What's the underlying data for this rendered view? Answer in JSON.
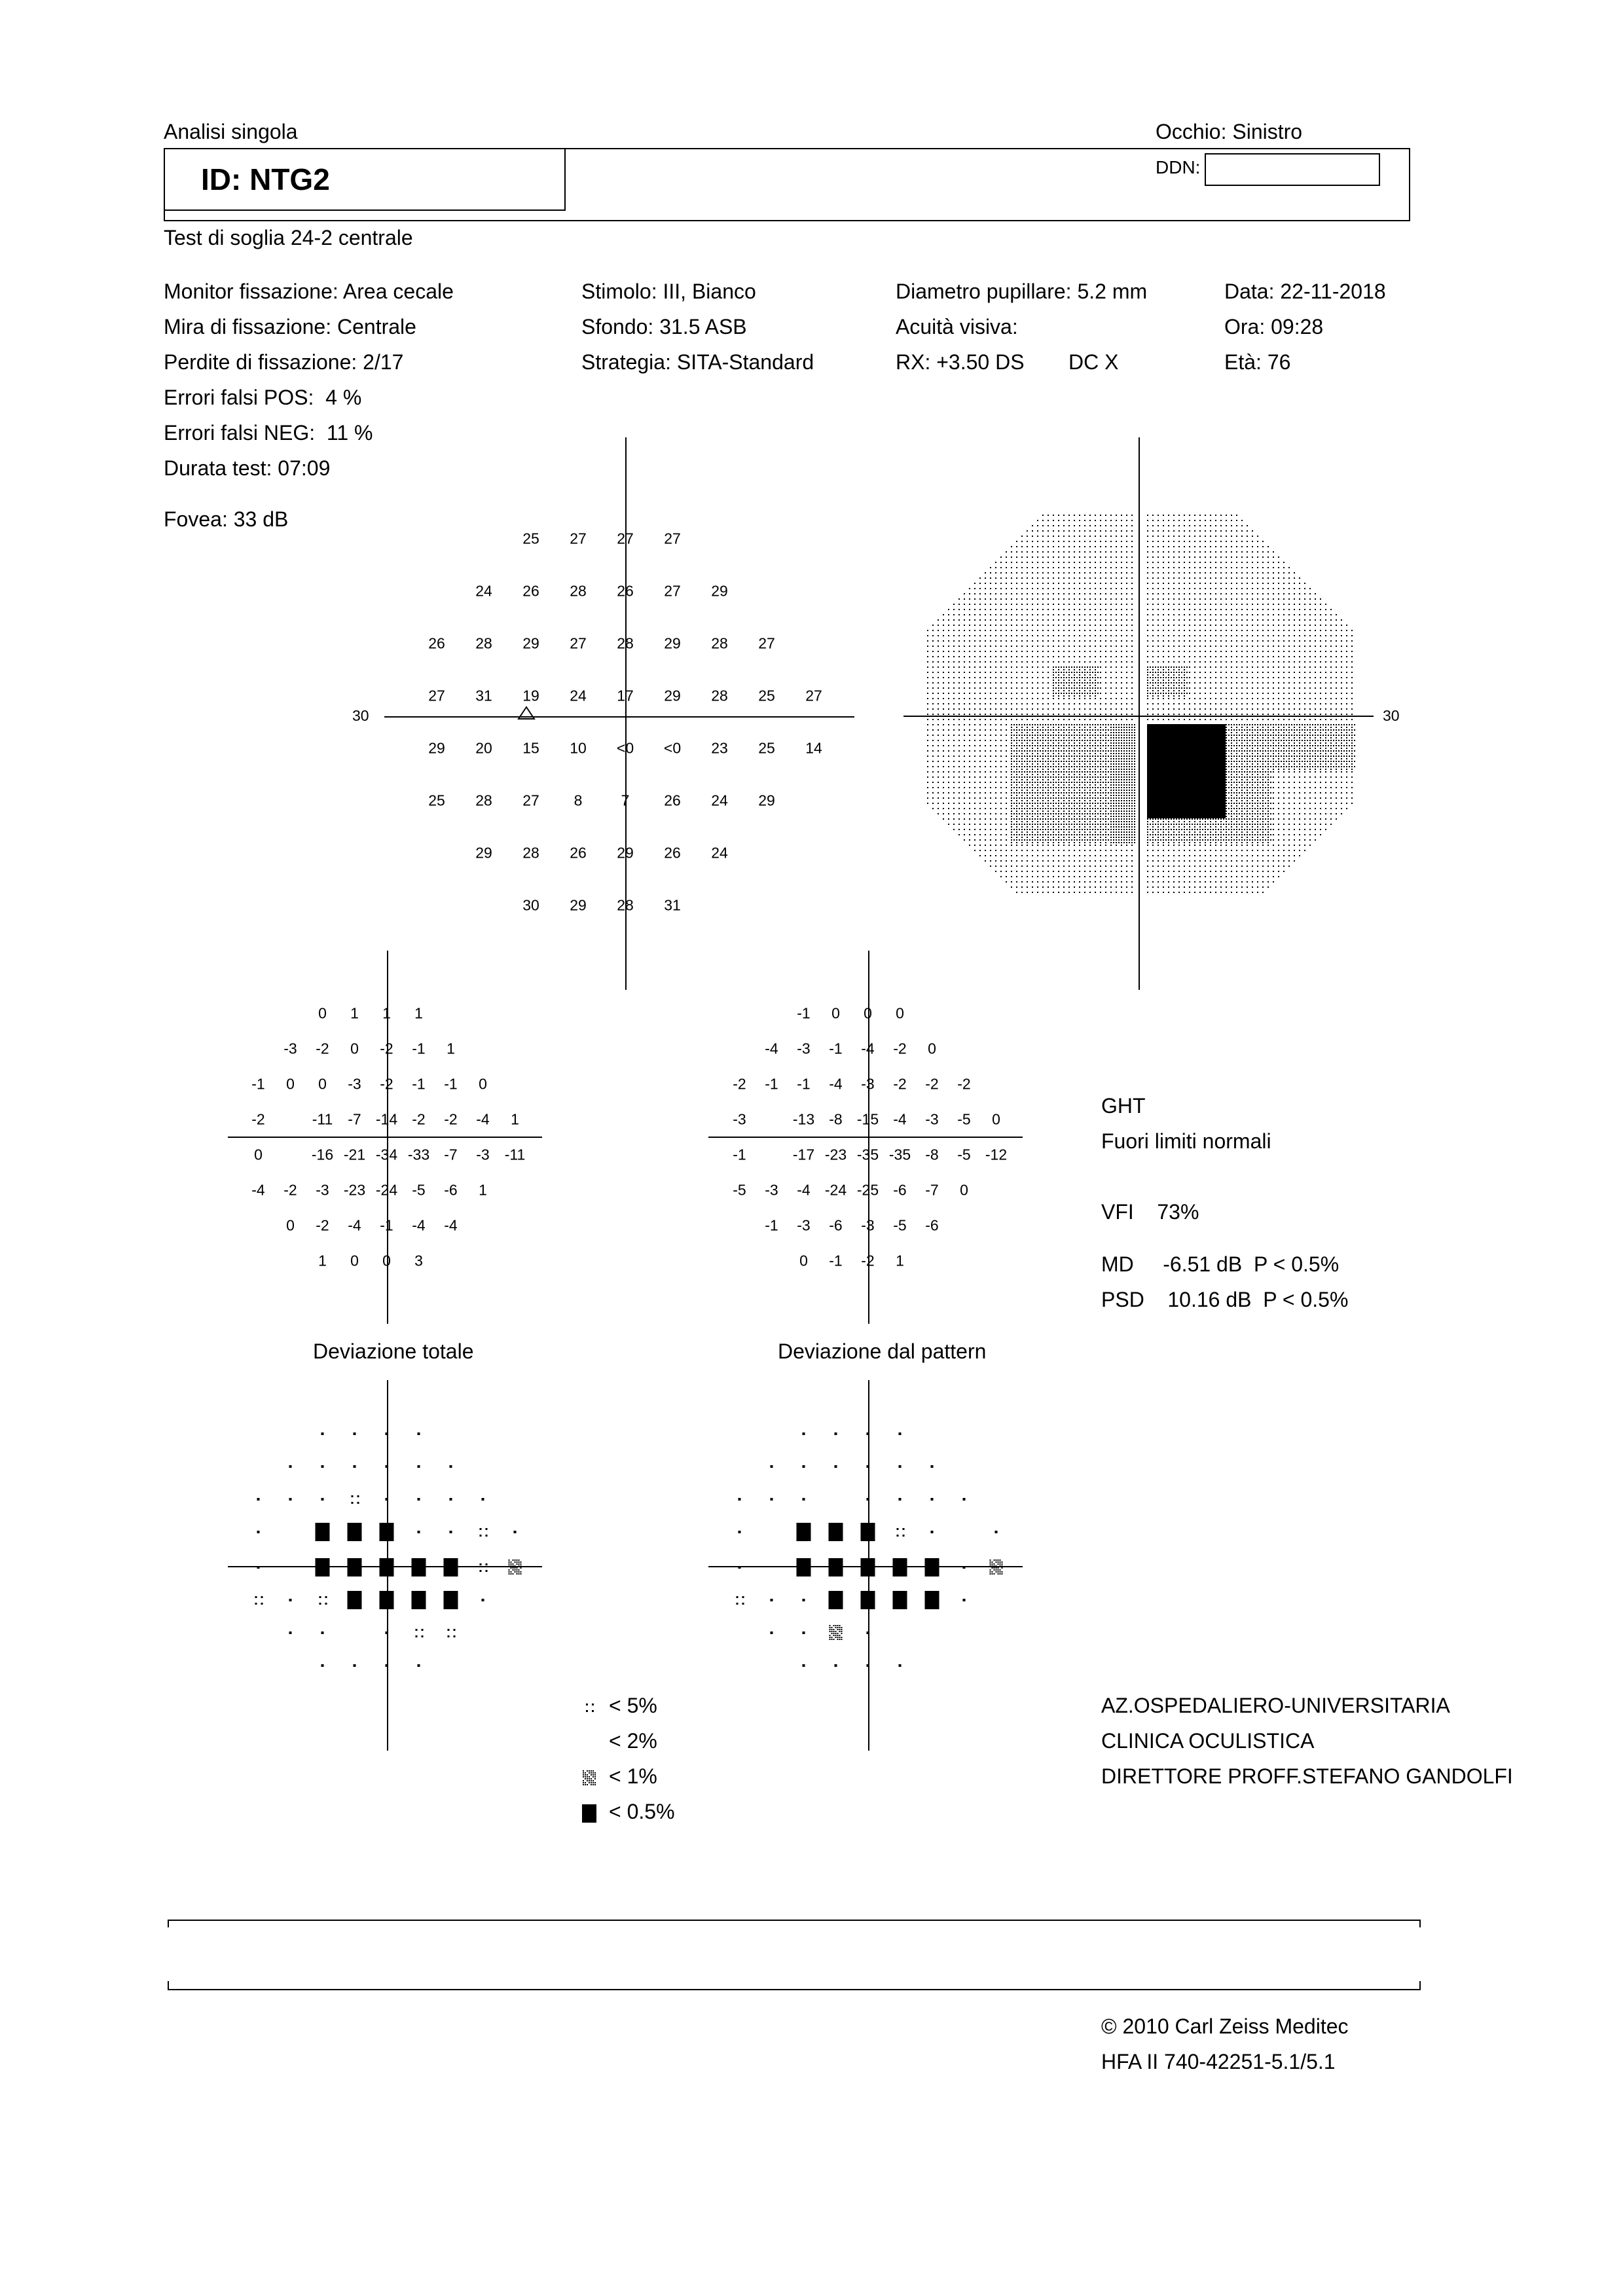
{
  "header": {
    "report_type": "Analisi singola",
    "eye": "Occhio: Sinistro",
    "patient_id": "ID: NTG2",
    "dob_label": "DDN:",
    "test_name": "Test di soglia 24-2 centrale"
  },
  "params": {
    "col1": [
      "Monitor fissazione: Area cecale",
      "Mira di fissazione: Centrale",
      "Perdite di fissazione: 2/17",
      "Errori falsi POS:  4 %",
      "Errori falsi NEG:  11 %",
      "Durata test: 07:09"
    ],
    "fovea": "Fovea: 33 dB",
    "col2": [
      "Stimolo: III, Bianco",
      "Sfondo: 31.5 ASB",
      "Strategia: SITA-Standard"
    ],
    "col3": [
      "Diametro pupillare: 5.2 mm",
      "Acuità visiva:",
      "RX: +3.50 DS"
    ],
    "col3_extra": "DC  X",
    "col4": [
      "Data: 22-11-2018",
      "Ora: 09:28",
      "Età: 76"
    ]
  },
  "threshold": {
    "axis_label_left": "30",
    "axis_label_right": "30",
    "rows": [
      [
        "",
        "",
        "",
        "25",
        "27",
        "27",
        "27",
        "",
        "",
        ""
      ],
      [
        "",
        "",
        "24",
        "26",
        "28",
        "26",
        "27",
        "29",
        "",
        ""
      ],
      [
        "",
        "26",
        "28",
        "29",
        "27",
        "28",
        "29",
        "28",
        "27",
        ""
      ],
      [
        "",
        "27",
        "31",
        "19",
        "24",
        "17",
        "29",
        "28",
        "25",
        "27"
      ],
      [
        "",
        "29",
        "20",
        "15",
        "10",
        "<0",
        "<0",
        "23",
        "25",
        "14"
      ],
      [
        "",
        "25",
        "28",
        "27",
        "8",
        "7",
        "26",
        "24",
        "29",
        ""
      ],
      [
        "",
        "",
        "29",
        "28",
        "26",
        "29",
        "26",
        "24",
        "",
        ""
      ],
      [
        "",
        "",
        "",
        "30",
        "29",
        "28",
        "31",
        "",
        "",
        ""
      ]
    ]
  },
  "total_deviation": {
    "label": "Deviazione totale",
    "rows": [
      [
        "",
        "",
        "",
        "0",
        "1",
        "1",
        "1",
        "",
        "",
        ""
      ],
      [
        "",
        "",
        "-3",
        "-2",
        "0",
        "-2",
        "-1",
        "1",
        "",
        ""
      ],
      [
        "",
        "-1",
        "0",
        "0",
        "-3",
        "-2",
        "-1",
        "-1",
        "0",
        ""
      ],
      [
        "",
        "-2",
        "",
        "-11",
        "-7",
        "-14",
        "-2",
        "-2",
        "-4",
        "1"
      ],
      [
        "",
        "0",
        "",
        "-16",
        "-21",
        "-34",
        "-33",
        "-7",
        "-3",
        "-11"
      ],
      [
        "",
        "-4",
        "-2",
        "-3",
        "-23",
        "-24",
        "-5",
        "-6",
        "1",
        ""
      ],
      [
        "",
        "",
        "0",
        "-2",
        "-4",
        "-1",
        "-4",
        "-4",
        "",
        ""
      ],
      [
        "",
        "",
        "",
        "1",
        "0",
        "0",
        "3",
        "",
        "",
        ""
      ]
    ]
  },
  "pattern_deviation": {
    "label": "Deviazione dal pattern",
    "rows": [
      [
        "",
        "",
        "",
        "-1",
        "0",
        "0",
        "0",
        "",
        "",
        ""
      ],
      [
        "",
        "",
        "-4",
        "-3",
        "-1",
        "-4",
        "-2",
        "0",
        "",
        ""
      ],
      [
        "",
        "-2",
        "-1",
        "-1",
        "-4",
        "-3",
        "-2",
        "-2",
        "-2",
        ""
      ],
      [
        "",
        "-3",
        "",
        "-13",
        "-8",
        "-15",
        "-4",
        "-3",
        "-5",
        "0"
      ],
      [
        "",
        "-1",
        "",
        "-17",
        "-23",
        "-35",
        "-35",
        "-8",
        "-5",
        "-12"
      ],
      [
        "",
        "-5",
        "-3",
        "-4",
        "-24",
        "-25",
        "-6",
        "-7",
        "0",
        ""
      ],
      [
        "",
        "",
        "-1",
        "-3",
        "-6",
        "-3",
        "-5",
        "-6",
        "",
        ""
      ],
      [
        "",
        "",
        "",
        "0",
        "-1",
        "-2",
        "1",
        "",
        "",
        ""
      ]
    ]
  },
  "indices": {
    "ght_label": "GHT",
    "ght_value": "Fuori limiti normali",
    "vfi": "VFI    73%",
    "md": "MD     -6.51 dB  P < 0.5%",
    "psd": "PSD    10.16 dB  P < 0.5%"
  },
  "legend": {
    "items": [
      "< 5%",
      "< 2%",
      "< 1%",
      "< 0.5%"
    ]
  },
  "institution": {
    "lines": [
      "AZ.OSPEDALIERO-UNIVERSITARIA",
      "CLINICA OCULISTICA",
      "DIRETTORE PROFF.STEFANO GANDOLFI"
    ]
  },
  "footer": {
    "copyright": "© 2010 Carl Zeiss Meditec",
    "version": "HFA II 740-42251-5.1/5.1"
  },
  "prob_total": [
    [
      "",
      "",
      "",
      ".",
      ".",
      ".",
      ".",
      "",
      "",
      ""
    ],
    [
      "",
      "",
      ".",
      ".",
      ".",
      ".",
      ".",
      ".",
      "",
      ""
    ],
    [
      "",
      ".",
      ".",
      ".",
      "5",
      ".",
      ".",
      ".",
      ".",
      ""
    ],
    [
      "",
      ".",
      "",
      "05",
      "05",
      "05",
      ".",
      ".",
      "5",
      "."
    ],
    [
      "",
      ".",
      "",
      "05",
      "05",
      "05",
      "05",
      "05",
      "5",
      "1"
    ],
    [
      "",
      "5",
      ".",
      "5",
      "05",
      "05",
      "05",
      "05",
      ".",
      ""
    ],
    [
      "",
      "",
      ".",
      ".",
      "2",
      ".",
      "5",
      "5",
      "",
      ""
    ],
    [
      "",
      "",
      "",
      ".",
      ".",
      ".",
      ".",
      "",
      "",
      ""
    ]
  ],
  "prob_pattern": [
    [
      "",
      "",
      "",
      ".",
      ".",
      ".",
      ".",
      "",
      "",
      ""
    ],
    [
      "",
      "",
      ".",
      ".",
      ".",
      ".",
      ".",
      ".",
      "",
      ""
    ],
    [
      "",
      ".",
      ".",
      ".",
      "2",
      ".",
      ".",
      ".",
      ".",
      ""
    ],
    [
      "",
      ".",
      "",
      "05",
      "05",
      "05",
      "5",
      ".",
      "2",
      "."
    ],
    [
      "",
      ".",
      "",
      "05",
      "05",
      "05",
      "05",
      "05",
      ".",
      "1"
    ],
    [
      "",
      "5",
      ".",
      ".",
      "05",
      "05",
      "05",
      "05",
      ".",
      ""
    ],
    [
      "",
      "",
      ".",
      ".",
      "1",
      ".",
      "2",
      "2",
      "",
      ""
    ],
    [
      "",
      "",
      "",
      ".",
      ".",
      ".",
      ".",
      "",
      "",
      ""
    ]
  ]
}
